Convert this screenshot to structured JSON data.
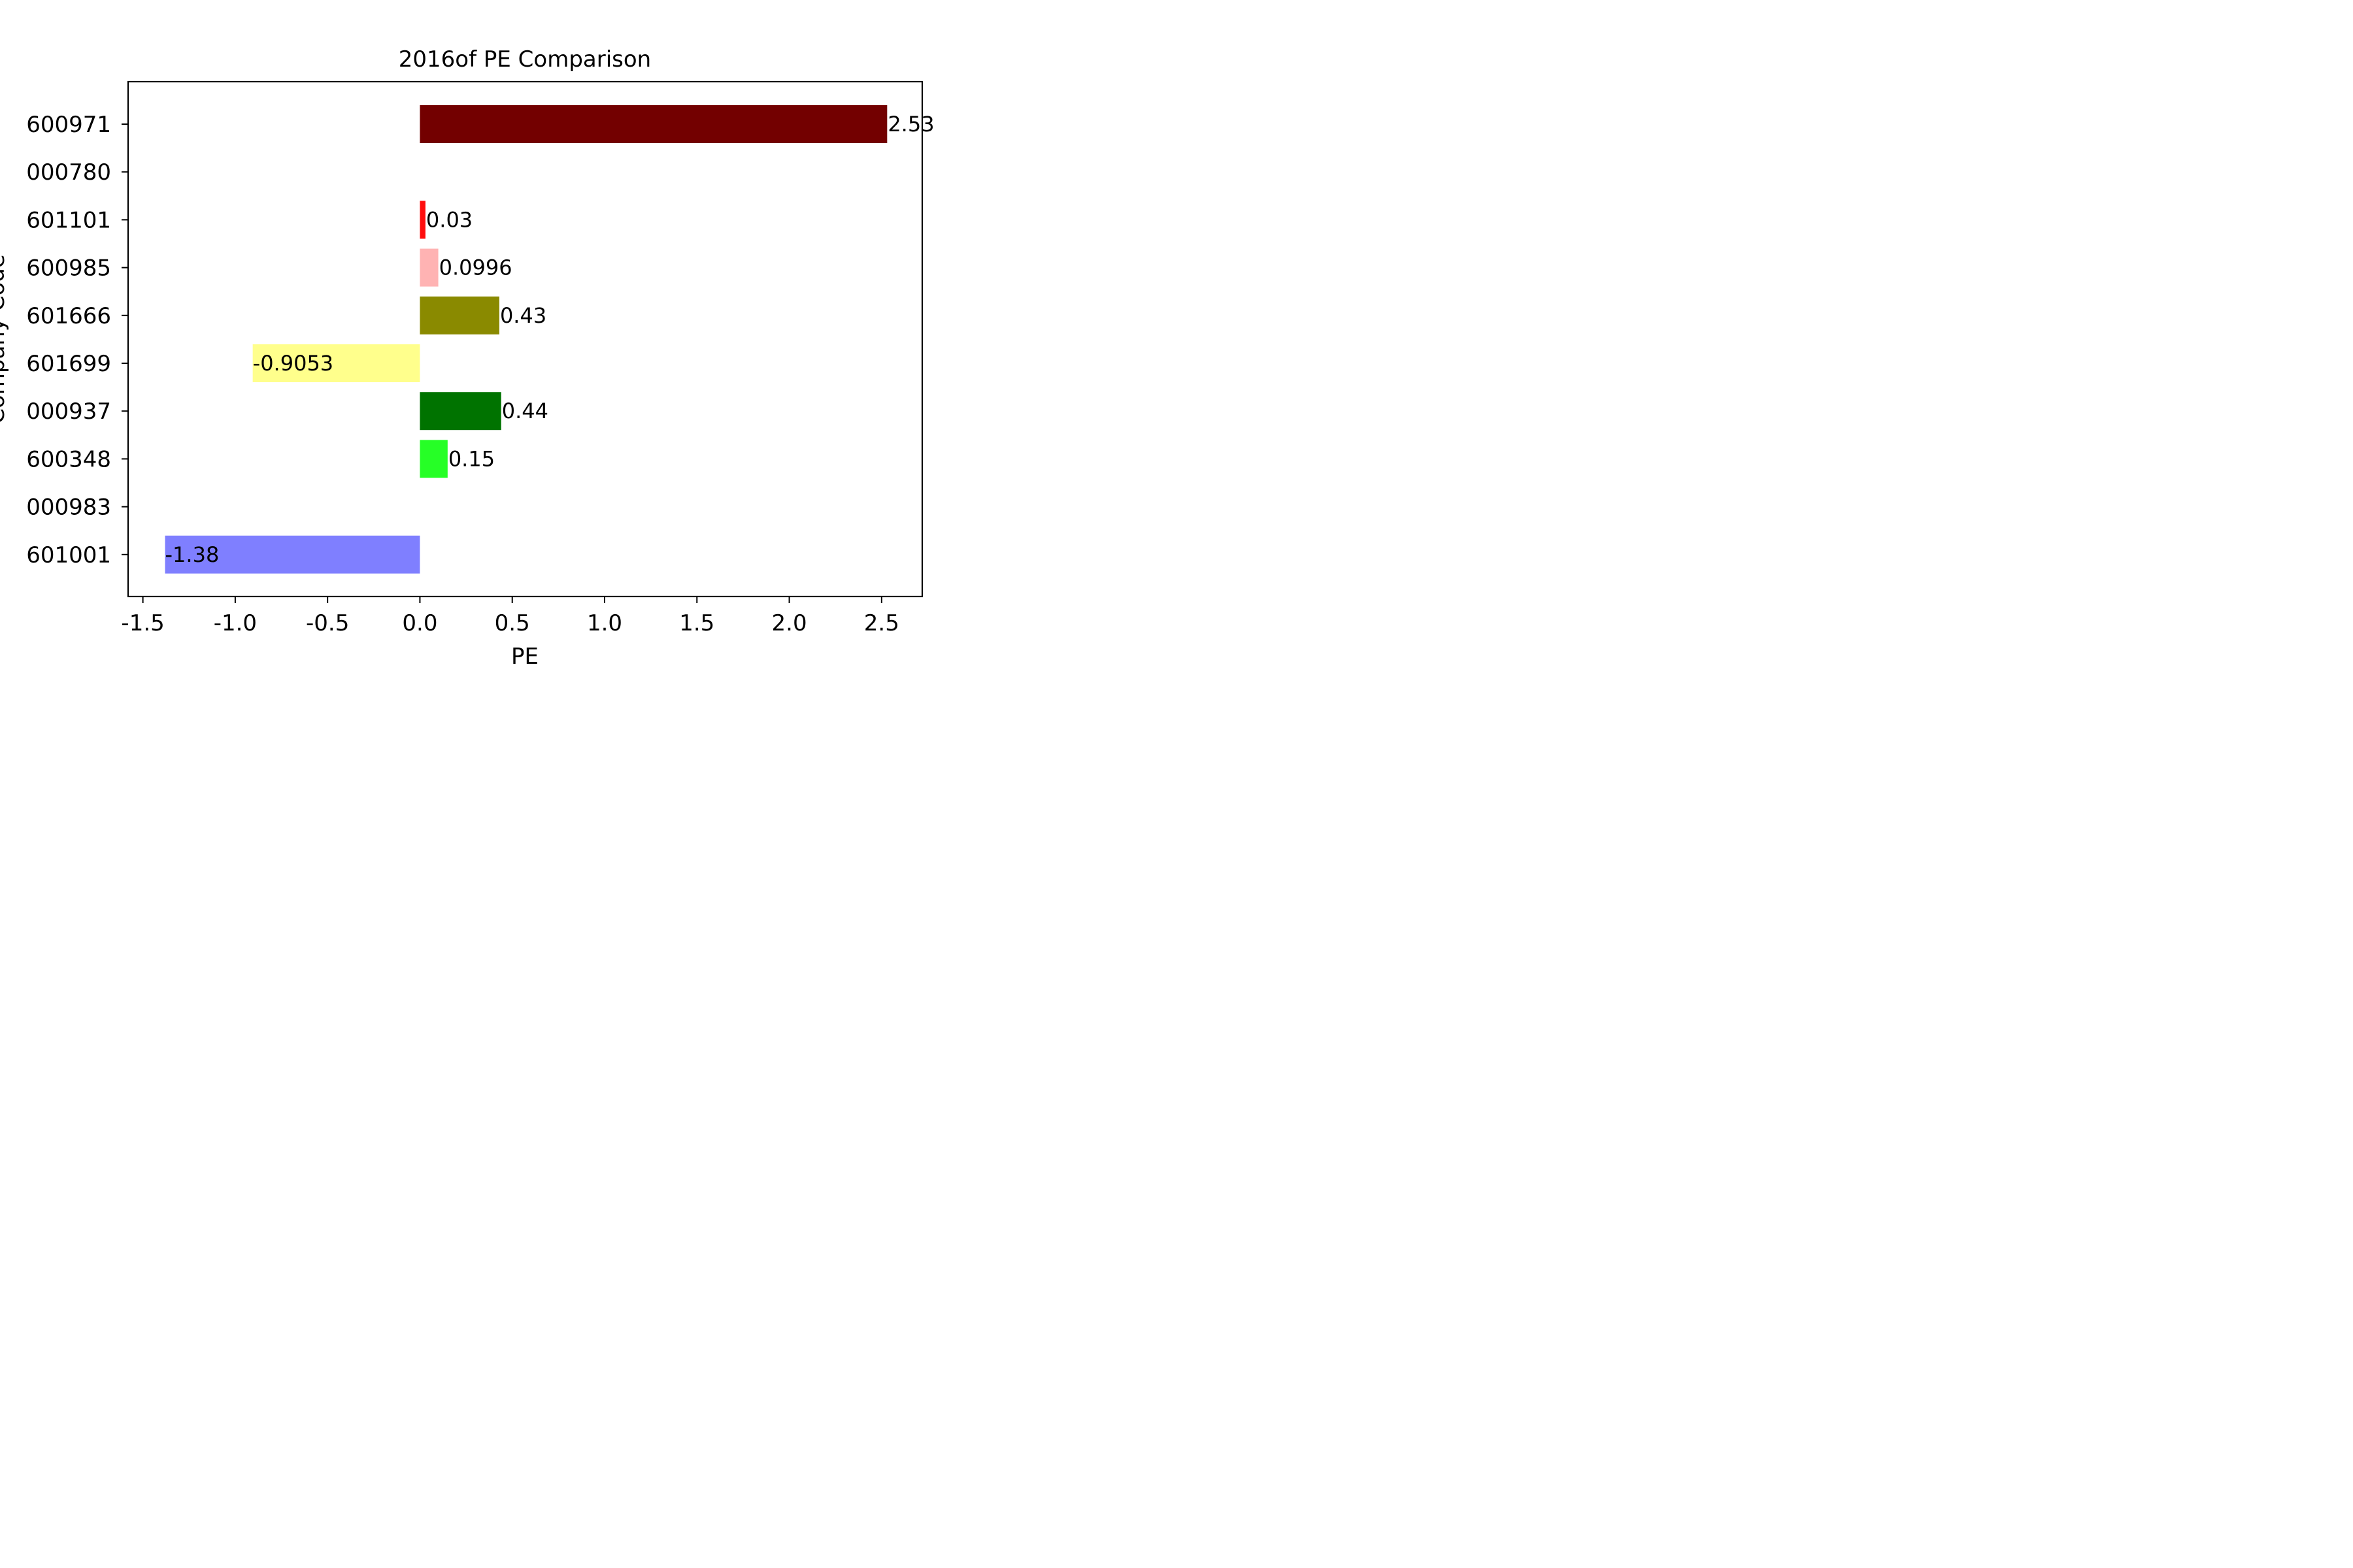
{
  "chart_data": {
    "type": "bar",
    "orientation": "horizontal",
    "title": "2016of PE Comparison",
    "xlabel": "PE",
    "ylabel": "Company Code",
    "xlim": [
      -1.58,
      2.72
    ],
    "x_ticks": [
      -1.5,
      -1.0,
      -0.5,
      0.0,
      0.5,
      1.0,
      1.5,
      2.0,
      2.5
    ],
    "x_tick_labels": [
      "-1.5",
      "-1.0",
      "-0.5",
      "0.0",
      "0.5",
      "1.0",
      "1.5",
      "2.0",
      "2.5"
    ],
    "categories": [
      "600971",
      "000780",
      "601101",
      "600985",
      "601666",
      "601699",
      "000937",
      "600348",
      "000983",
      "601001"
    ],
    "values": [
      2.53,
      null,
      0.03,
      0.0996,
      0.43,
      -0.9053,
      0.44,
      0.15,
      null,
      -1.38
    ],
    "value_labels": [
      "2.53",
      "",
      "0.03",
      "0.0996",
      "0.43",
      "-0.9053",
      "0.44",
      "0.15",
      "",
      "-1.38"
    ],
    "colors": [
      "#730000",
      "#ffffff",
      "#ff0d0d",
      "#ffb3b3",
      "#8a8a00",
      "#ffff8c",
      "#007300",
      "#26ff26",
      "#ffffff",
      "#7f7fff"
    ],
    "grid": false,
    "legend": false
  }
}
